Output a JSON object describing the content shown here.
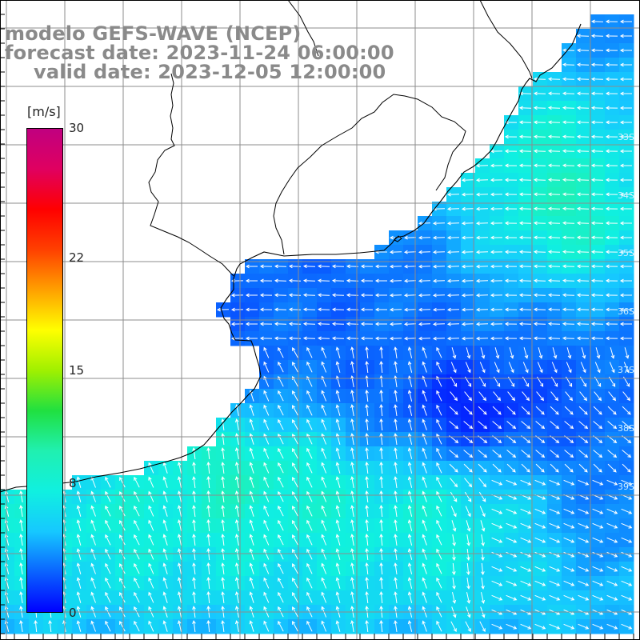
{
  "title": {
    "model": "modelo GEFS-WAVE (NCEP)",
    "forecast": "forecast date: 2023-11-24 06:00:00",
    "valid": "valid date: 2023-12-05 12:00:00"
  },
  "colorbar": {
    "units": "[m/s]",
    "range": [
      0,
      30
    ],
    "ticks": [
      {
        "label": "30",
        "value": 30
      },
      {
        "label": "22",
        "value": 22
      },
      {
        "label": "15",
        "value": 15
      },
      {
        "label": "8",
        "value": 8
      },
      {
        "label": "0",
        "value": 0
      }
    ],
    "colors": [
      "#0000ff",
      "#0a64ff",
      "#16c8ff",
      "#10f0e0",
      "#20f0b0",
      "#20e040",
      "#a0f000",
      "#ffff00",
      "#ffa000",
      "#ff4000",
      "#ff0000",
      "#e00060",
      "#c00080"
    ]
  },
  "map": {
    "land_color": "#ffffff",
    "grid_color": "#8c8c8c",
    "arrow_color": "#ffffff",
    "latitude_labels": [
      "33S",
      "34S",
      "35S",
      "36S",
      "37S",
      "38S",
      "39S"
    ]
  }
}
